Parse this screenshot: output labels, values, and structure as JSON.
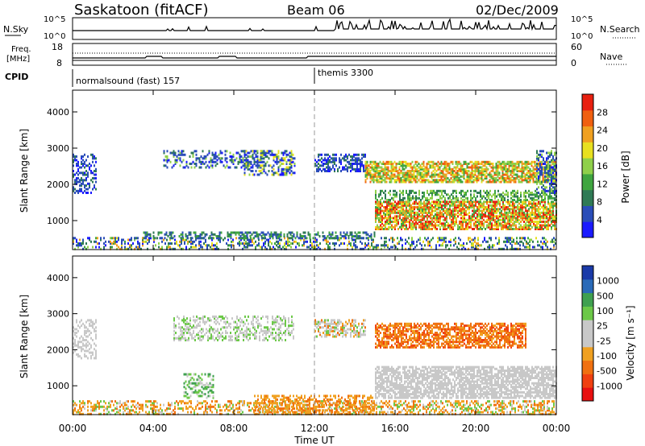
{
  "header": {
    "station": "Saskatoon (fitACF)",
    "beam": "Beam 06",
    "date": "02/Dec/2009"
  },
  "noise_panel": {
    "left_label": "N.Sky",
    "right_label": "N.Search",
    "left_ticks": [
      "10^5",
      "10^0"
    ],
    "right_ticks": [
      "10^5",
      "10^0"
    ]
  },
  "freq_panel": {
    "left_label_1": "Freq.",
    "left_label_2": "[MHz]",
    "left_ticks": [
      "18",
      "8"
    ],
    "right_ticks": [
      "60",
      "0"
    ],
    "right_label": "Nave"
  },
  "cpid_panel": {
    "label": "CPID",
    "segments": [
      {
        "name": "normalsound (fast) 157",
        "start": 0,
        "end": 12
      },
      {
        "name": "themis 3300",
        "start": 12,
        "end": 24
      }
    ]
  },
  "colors": {
    "power_scale": [
      "#1a1aff",
      "#2a4db8",
      "#2f7a55",
      "#3fa53f",
      "#8fd04a",
      "#e8e020",
      "#f0a020",
      "#f06010",
      "#e82010"
    ],
    "velocity_scale": [
      "#e81010",
      "#f04010",
      "#f07010",
      "#f0a020",
      "#c8c8c8",
      "#c8c8c8",
      "#6cc848",
      "#3fa050",
      "#2a6ab8",
      "#1a3aa8"
    ]
  },
  "chart_data": [
    {
      "type": "heatmap",
      "name": "power",
      "ylabel": "Slant Range [km]",
      "yticks": [
        1000,
        2000,
        3000,
        4000
      ],
      "ylim": [
        200,
        4600
      ],
      "xlim": [
        0,
        24
      ],
      "colorbar_label": "Power [dB]",
      "colorbar_ticks": [
        "4",
        "8",
        "12",
        "16",
        "20",
        "24",
        "28"
      ],
      "colorbar_range": [
        0,
        32
      ]
    },
    {
      "type": "heatmap",
      "name": "velocity",
      "ylabel": "Slant Range [km]",
      "yticks": [
        1000,
        2000,
        3000,
        4000
      ],
      "ylim": [
        200,
        4600
      ],
      "xlim": [
        0,
        24
      ],
      "colorbar_label": "Velocity [m s⁻¹]",
      "colorbar_ticks": [
        "-1000",
        "-500",
        "-100",
        "-25",
        "25",
        "100",
        "500",
        "1000"
      ]
    }
  ],
  "x_axis": {
    "ticks": [
      "00:00",
      "04:00",
      "08:00",
      "12:00",
      "16:00",
      "20:00",
      "00:00"
    ],
    "label": "Time UT"
  }
}
